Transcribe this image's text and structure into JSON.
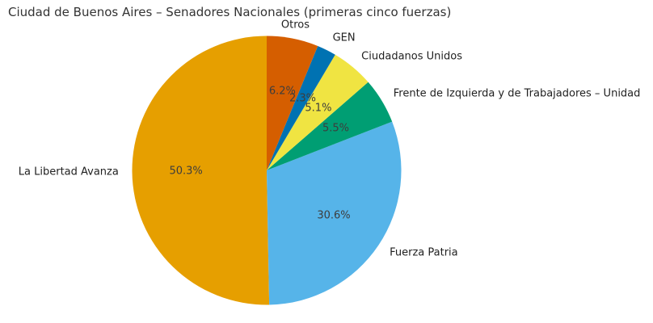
{
  "chart_data": {
    "type": "pie",
    "title": "Ciudad de Buenos Aires – Senadores Nacionales (primeras cinco fuerzas)",
    "slices": [
      {
        "label": "La Libertad Avanza",
        "value": 50.3,
        "pct_label": "50.3%",
        "color": "#E69F00"
      },
      {
        "label": "Fuerza Patria",
        "value": 30.6,
        "pct_label": "30.6%",
        "color": "#56B4E9"
      },
      {
        "label": "Frente de Izquierda y de Trabajadores – Unidad",
        "value": 5.5,
        "pct_label": "5.5%",
        "color": "#009E73"
      },
      {
        "label": "Ciudadanos Unidos",
        "value": 5.1,
        "pct_label": "5.1%",
        "color": "#F0E442"
      },
      {
        "label": "GEN",
        "value": 2.3,
        "pct_label": "2.3%",
        "color": "#0072B2"
      },
      {
        "label": "Otros",
        "value": 6.2,
        "pct_label": "6.2%",
        "color": "#D55E00"
      }
    ],
    "start_angle_deg": 90,
    "direction": "counterclockwise",
    "label_distance": 1.1,
    "pct_distance": 0.6,
    "background_color": "#ffffff",
    "legend": "none"
  }
}
